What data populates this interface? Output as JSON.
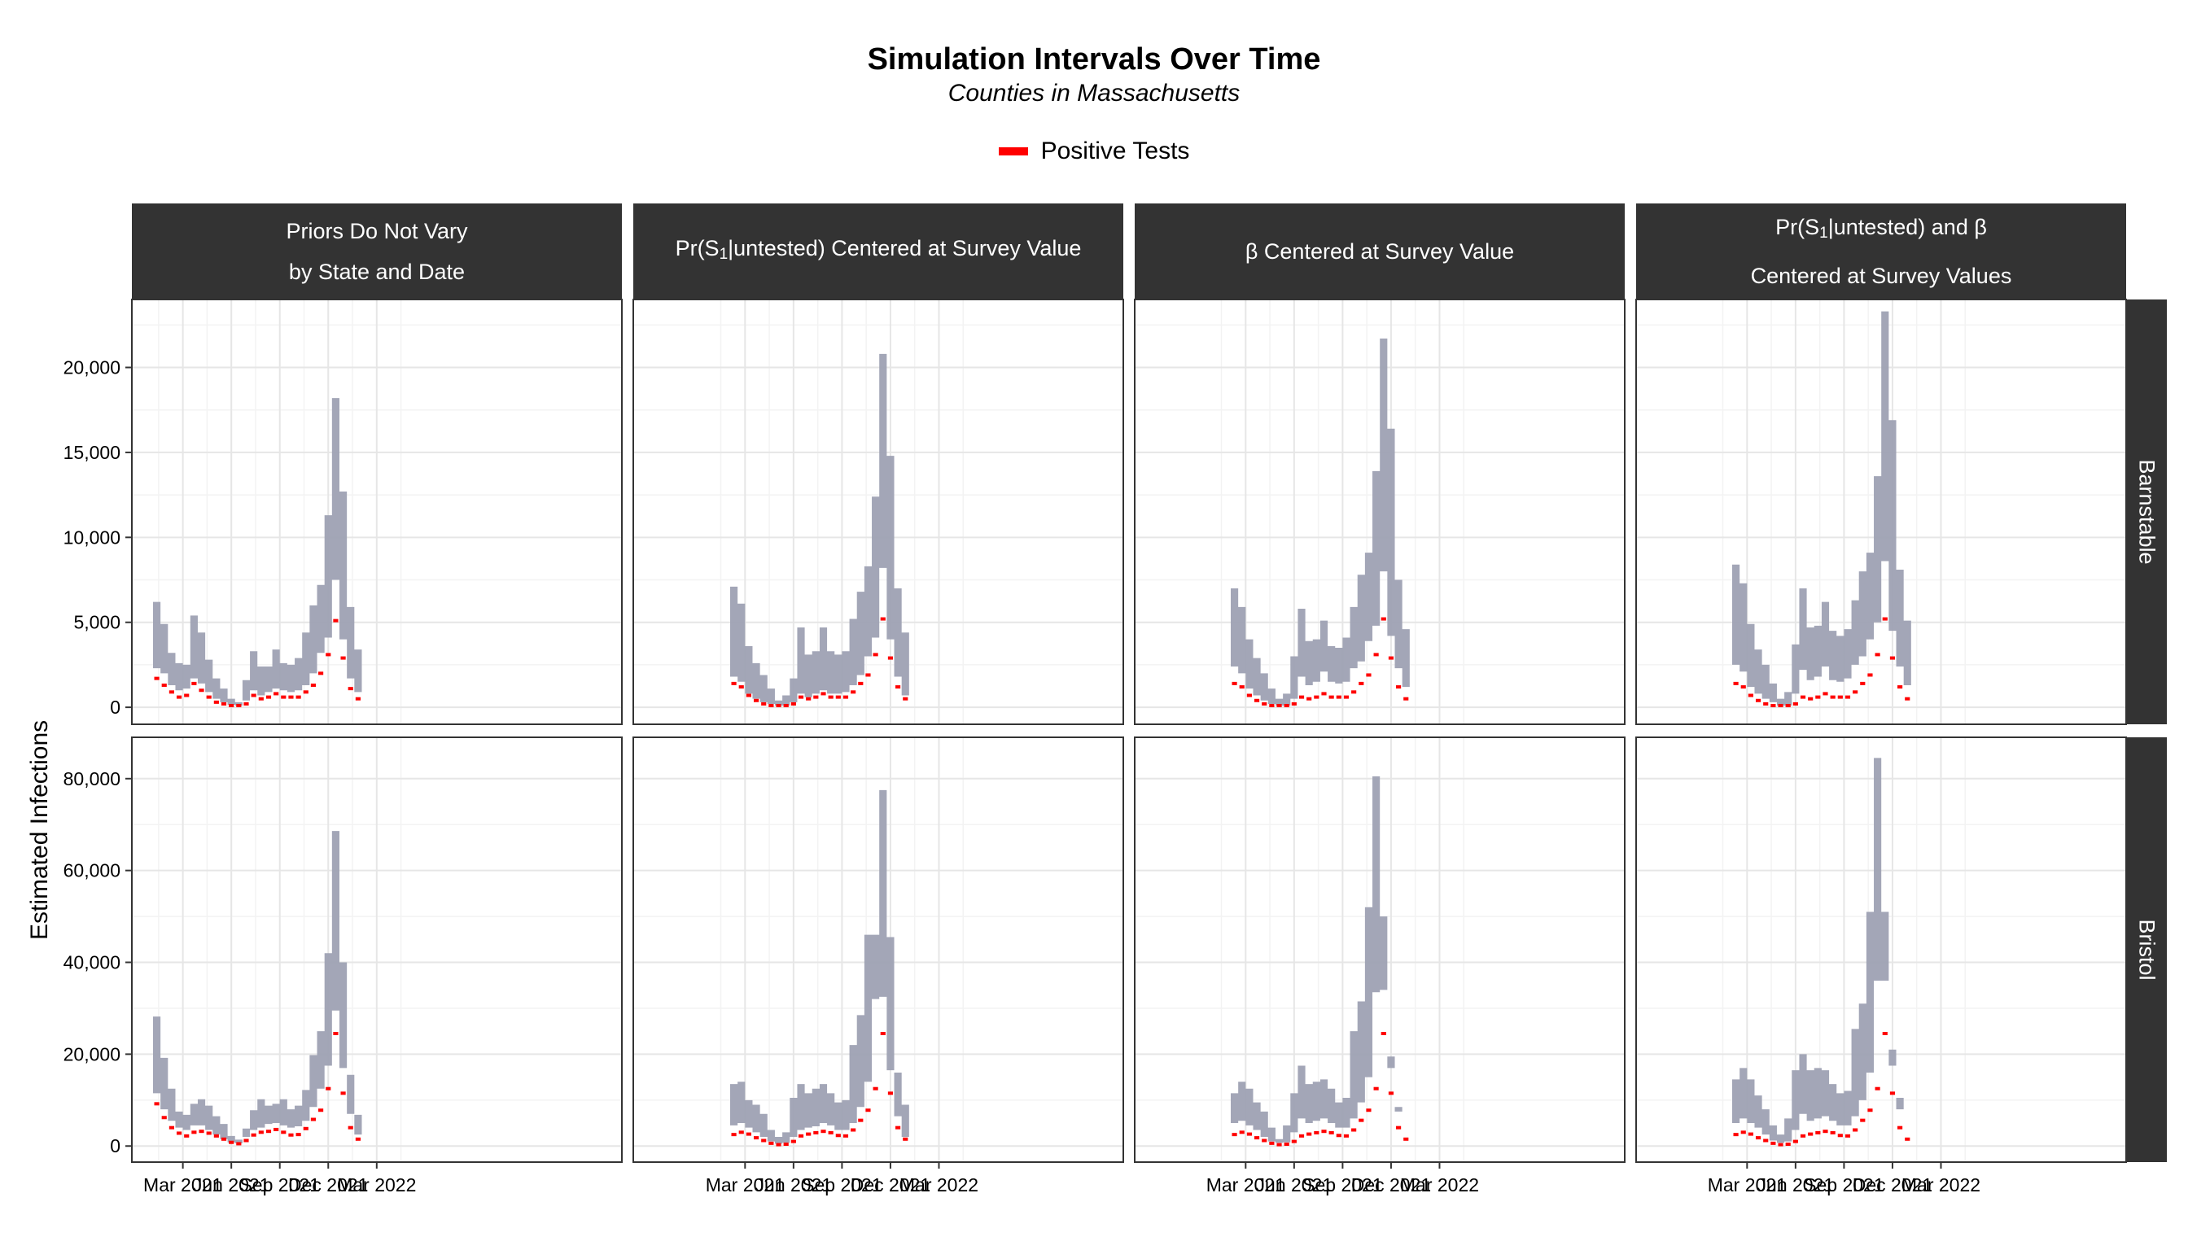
{
  "title": "Simulation Intervals Over Time",
  "subtitle": "Counties in Massachusetts",
  "legend": {
    "label": "Positive Tests",
    "color": "#ff0000"
  },
  "ylabel": "Estimated Infections",
  "colors": {
    "band": "#9ea1b3",
    "tests": "#ff0000",
    "strip": "#333333"
  },
  "columns": [
    {
      "lines": [
        "Priors Do Not Vary",
        "by State and Date"
      ]
    },
    {
      "parts": [
        "Pr(S",
        "1",
        "|untested) Centered at Survey Value"
      ]
    },
    {
      "lines": [
        "β Centered at Survey Value"
      ]
    },
    {
      "parts": [
        "Pr(S",
        "1",
        "|untested) and β"
      ],
      "line2": "Centered at Survey Values"
    }
  ],
  "rows": [
    "Barnstable",
    "Bristol"
  ],
  "x_tick_labels": [
    "Mar 2021",
    "Jun 2021",
    "Sep 2021",
    "Dec 2021",
    "Mar 2022"
  ],
  "chart_data": {
    "type": "area",
    "x_unit": "week of 2021-2022 (4-week intervals, first interval starting early January 2021)",
    "y_ticks_row1": [
      "0",
      "5,000",
      "10,000",
      "15,000",
      "20,000"
    ],
    "y_ticks_row2": [
      "0",
      "20,000",
      "40,000",
      "60,000",
      "80,000"
    ],
    "ylim_row1": [
      -1000,
      24000
    ],
    "ylim_row2": [
      -3500,
      89000
    ],
    "panels": [
      {
        "row": "Barnstable",
        "col": 1,
        "lower": [
          2300,
          2000,
          1300,
          1000,
          1100,
          1700,
          1400,
          900,
          500,
          300,
          150,
          100,
          400,
          1000,
          700,
          900,
          1100,
          1000,
          900,
          1000,
          1300,
          2000,
          3200,
          4100,
          7500,
          4000,
          1700,
          900
        ],
        "upper": [
          6200,
          4900,
          3200,
          2600,
          2500,
          5400,
          4400,
          2800,
          1700,
          1100,
          500,
          300,
          1600,
          3300,
          2400,
          2400,
          3400,
          2600,
          2500,
          2900,
          4400,
          6000,
          7200,
          11300,
          18200,
          12700,
          5900,
          3400
        ],
        "tests": [
          1700,
          1300,
          900,
          600,
          700,
          1400,
          1000,
          600,
          300,
          200,
          100,
          100,
          200,
          700,
          500,
          600,
          800,
          600,
          600,
          600,
          900,
          1300,
          2000,
          3100,
          5100,
          2900,
          1100,
          500
        ]
      },
      {
        "row": "Barnstable",
        "col": 2,
        "lower": [
          1800,
          1500,
          800,
          500,
          300,
          200,
          100,
          100,
          300,
          800,
          600,
          800,
          1000,
          800,
          800,
          900,
          1300,
          1900,
          3000,
          4100,
          8200,
          4000,
          1800,
          700
        ],
        "upper": [
          7100,
          6100,
          3600,
          2600,
          1900,
          1100,
          400,
          700,
          1700,
          4700,
          3100,
          3300,
          4700,
          3300,
          3100,
          3300,
          5200,
          6800,
          8300,
          12400,
          20800,
          14800,
          7000,
          4400
        ],
        "tests": [
          1400,
          1200,
          700,
          400,
          200,
          100,
          100,
          100,
          200,
          600,
          500,
          600,
          800,
          600,
          600,
          600,
          900,
          1400,
          1900,
          3100,
          5200,
          2900,
          1200,
          500
        ]
      },
      {
        "row": "Barnstable",
        "col": 3,
        "lower": [
          2400,
          2000,
          1100,
          700,
          400,
          200,
          100,
          100,
          500,
          1800,
          1300,
          1500,
          2100,
          1500,
          1400,
          1500,
          2300,
          2700,
          3900,
          4800,
          8000,
          4200,
          2300,
          1200
        ],
        "upper": [
          7000,
          5900,
          4000,
          2900,
          2000,
          1100,
          500,
          800,
          3000,
          5800,
          3900,
          4000,
          5100,
          3600,
          3500,
          4100,
          5900,
          7800,
          9100,
          13900,
          21700,
          16400,
          7500,
          4600
        ],
        "tests": [
          1400,
          1200,
          700,
          400,
          200,
          100,
          100,
          100,
          200,
          600,
          500,
          600,
          800,
          600,
          600,
          600,
          900,
          1400,
          1900,
          3100,
          5200,
          2900,
          1200,
          500
        ]
      },
      {
        "row": "Barnstable",
        "col": 4,
        "lower": [
          2500,
          2100,
          1200,
          800,
          500,
          300,
          100,
          100,
          800,
          2200,
          1600,
          1800,
          2400,
          1600,
          1500,
          1700,
          2500,
          3000,
          4000,
          5000,
          8600,
          4500,
          2400,
          1300
        ],
        "upper": [
          8400,
          7300,
          4900,
          3400,
          2500,
          1400,
          500,
          900,
          3700,
          7000,
          4700,
          4800,
          6200,
          4500,
          4200,
          4600,
          6300,
          8000,
          9100,
          13600,
          23300,
          16900,
          8100,
          5100
        ],
        "tests": [
          1400,
          1200,
          700,
          400,
          200,
          100,
          100,
          100,
          200,
          600,
          500,
          600,
          800,
          600,
          600,
          600,
          900,
          1400,
          1900,
          3100,
          5200,
          2900,
          1200,
          500
        ]
      },
      {
        "row": "Bristol",
        "col": 1,
        "lower": [
          11500,
          8000,
          5500,
          4000,
          3500,
          4500,
          4500,
          3500,
          2500,
          1500,
          800,
          600,
          2000,
          3500,
          4000,
          4800,
          5000,
          4500,
          4000,
          4300,
          5500,
          8500,
          12500,
          17500,
          29500,
          17000,
          7000,
          2500
        ],
        "upper": [
          28200,
          19200,
          12500,
          7500,
          6800,
          9200,
          10200,
          8800,
          6500,
          4800,
          2200,
          1400,
          3800,
          7800,
          10200,
          8800,
          9200,
          10200,
          8000,
          8800,
          12200,
          19800,
          25000,
          42000,
          68600,
          40000,
          15500,
          6800
        ],
        "tests": [
          9200,
          6200,
          4000,
          2800,
          2200,
          3000,
          3200,
          2800,
          2200,
          1500,
          800,
          500,
          1200,
          2400,
          3000,
          3200,
          3600,
          3000,
          2400,
          2500,
          3800,
          5800,
          7800,
          12500,
          24500,
          11500,
          4000,
          1500
        ]
      },
      {
        "row": "Bristol",
        "col": 2,
        "lower": [
          4500,
          5000,
          4000,
          3000,
          2000,
          1000,
          500,
          700,
          2000,
          3500,
          4000,
          4300,
          5000,
          4500,
          3500,
          3500,
          5000,
          8500,
          14000,
          32000,
          32500,
          16500,
          6500,
          2000
        ],
        "upper": [
          13500,
          14000,
          10000,
          9000,
          7000,
          3500,
          2000,
          3000,
          10500,
          13500,
          11500,
          12500,
          13500,
          11500,
          9500,
          10000,
          22000,
          28500,
          46000,
          46000,
          77500,
          45500,
          16000,
          9000
        ],
        "tests": [
          2500,
          3000,
          2600,
          1800,
          1200,
          600,
          300,
          400,
          1000,
          2200,
          2600,
          2900,
          3200,
          2900,
          2300,
          2200,
          3500,
          5600,
          7800,
          12500,
          24500,
          11500,
          4000,
          1500
        ]
      },
      {
        "row": "Bristol",
        "col": 3,
        "lower": [
          5000,
          5500,
          4500,
          3500,
          2000,
          1000,
          700,
          800,
          3000,
          6000,
          5000,
          5500,
          6000,
          5000,
          4000,
          4000,
          6000,
          9500,
          15000,
          33500,
          34000,
          17000,
          7500,
          3000
        ],
        "upper": [
          11500,
          14000,
          12500,
          9500,
          7500,
          4000,
          1500,
          4500,
          11500,
          17500,
          13500,
          14000,
          14500,
          12500,
          9500,
          10500,
          25000,
          31500,
          52000,
          80500,
          50000,
          19500,
          8500,
          3000
        ],
        "tests": [
          2500,
          3000,
          2600,
          1800,
          1200,
          600,
          300,
          400,
          1000,
          2200,
          2600,
          2900,
          3200,
          2900,
          2300,
          2200,
          3500,
          5600,
          7800,
          12500,
          24500,
          11500,
          4000,
          1500
        ]
      },
      {
        "row": "Bristol",
        "col": 4,
        "lower": [
          5000,
          6000,
          5000,
          4000,
          2500,
          1200,
          700,
          1000,
          3500,
          7000,
          5500,
          6000,
          6500,
          5500,
          4500,
          4500,
          6500,
          10000,
          16000,
          36000,
          36000,
          17500,
          8000,
          3000
        ],
        "upper": [
          14500,
          17000,
          14500,
          11000,
          8000,
          4500,
          2500,
          6000,
          16500,
          20000,
          16500,
          17000,
          16500,
          13500,
          11500,
          12000,
          25500,
          31000,
          51000,
          84500,
          51000,
          21000,
          10500,
          3000
        ],
        "tests": [
          2500,
          3000,
          2600,
          1800,
          1200,
          600,
          300,
          400,
          1000,
          2200,
          2600,
          2900,
          3200,
          2900,
          2300,
          2200,
          3500,
          5600,
          7800,
          12500,
          24500,
          11500,
          4000,
          1500
        ]
      }
    ]
  }
}
